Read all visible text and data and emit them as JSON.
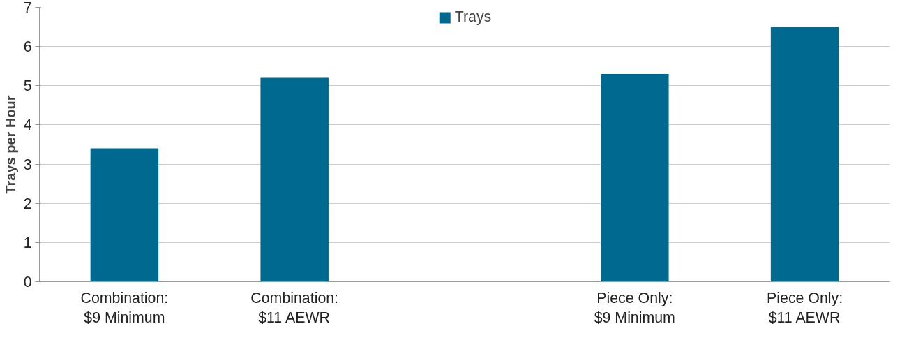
{
  "chart_data": {
    "type": "bar",
    "ylabel": "Trays per Hour",
    "categories": [
      "Combination:\n$9 Minimum",
      "Combination:\n$11 AEWR",
      null,
      "Piece Only:\n$9 Minimum",
      "Piece Only:\n$11 AEWR"
    ],
    "series": [
      {
        "name": "Trays",
        "color": "#006990",
        "values": [
          3.4,
          5.2,
          null,
          5.3,
          6.5
        ]
      }
    ],
    "ylim": [
      0,
      7
    ],
    "yticks": [
      0,
      1,
      2,
      3,
      4,
      5,
      6,
      7
    ],
    "grid": "y",
    "legend": "top"
  }
}
